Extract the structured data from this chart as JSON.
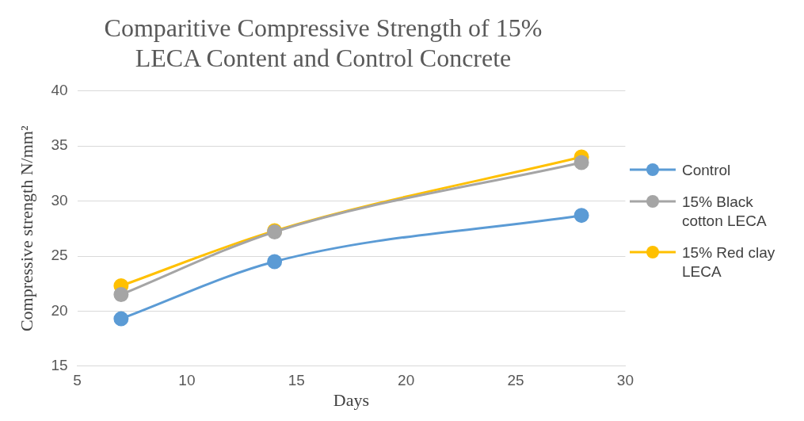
{
  "chart_data": {
    "type": "line",
    "title": "Comparitive Compressive Strength of 15% LECA Content and Control Concrete",
    "xlabel": "Days",
    "ylabel": "Compressive strength N/mm²",
    "x": [
      7,
      14,
      28
    ],
    "xlim": [
      5,
      30
    ],
    "xticks": [
      5,
      10,
      15,
      20,
      25,
      30
    ],
    "ylim": [
      15,
      40
    ],
    "yticks": [
      15,
      20,
      25,
      30,
      35,
      40
    ],
    "grid": "y",
    "legend": "right",
    "marker": "circle",
    "line_style": "solid",
    "series": [
      {
        "name": "Control",
        "color": "#5b9bd5",
        "values": [
          19.3,
          24.5,
          28.7
        ]
      },
      {
        "name": "15% Black cotton LECA",
        "color": "#a5a5a5",
        "values": [
          21.5,
          27.2,
          33.5
        ]
      },
      {
        "name": "15% Red clay LECA",
        "color": "#ffc000",
        "values": [
          22.3,
          27.3,
          34.0
        ]
      }
    ]
  }
}
